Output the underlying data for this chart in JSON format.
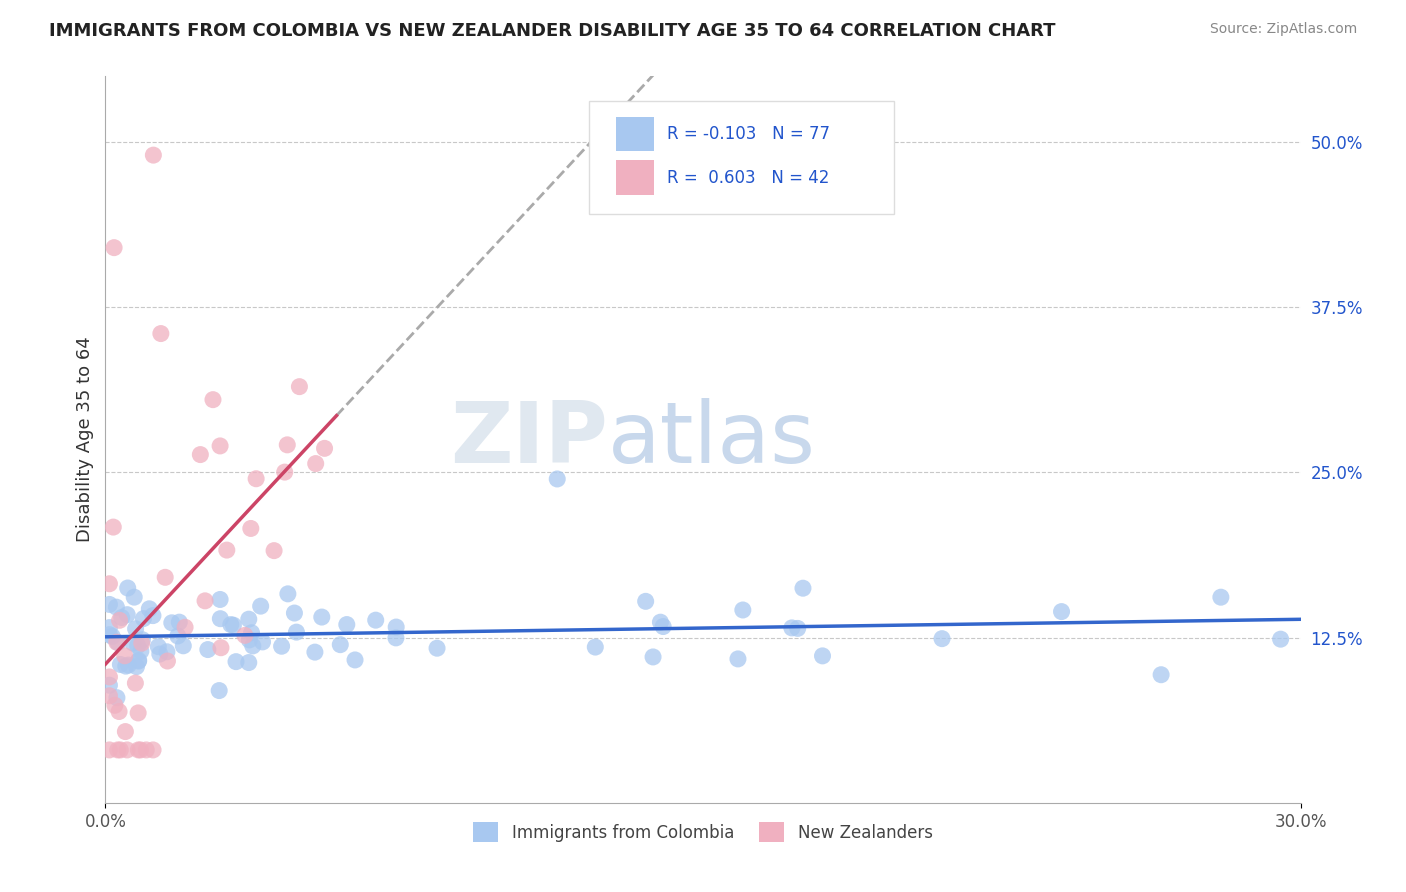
{
  "title": "IMMIGRANTS FROM COLOMBIA VS NEW ZEALANDER DISABILITY AGE 35 TO 64 CORRELATION CHART",
  "source": "Source: ZipAtlas.com",
  "ylabel": "Disability Age 35 to 64",
  "xlim": [
    0.0,
    0.3
  ],
  "ylim": [
    0.0,
    0.55
  ],
  "ytick_labels": [
    "12.5%",
    "25.0%",
    "37.5%",
    "50.0%"
  ],
  "ytick_positions": [
    0.125,
    0.25,
    0.375,
    0.5
  ],
  "grid_color": "#c8c8c8",
  "background_color": "#ffffff",
  "series1_color": "#a8c8f0",
  "series2_color": "#f0b0c0",
  "series1_label": "Immigrants from Colombia",
  "series2_label": "New Zealanders",
  "series1_R": "-0.103",
  "series1_N": "77",
  "series2_R": "0.603",
  "series2_N": "42",
  "legend_R_color": "#2255cc",
  "series1_trend_color": "#3366cc",
  "series2_trend_color": "#cc4466",
  "series2_trend_dashed_color": "#aaaaaa"
}
